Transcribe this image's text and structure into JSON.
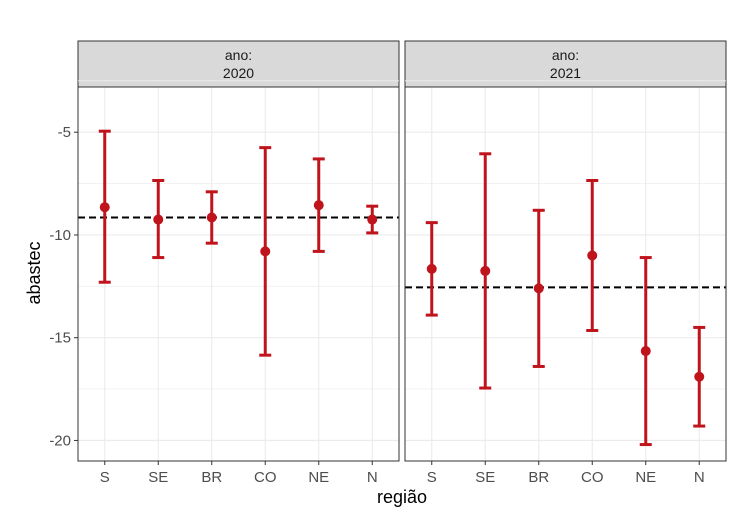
{
  "chart_data": {
    "type": "errorbar",
    "xlabel": "região",
    "ylabel": "abastec",
    "ylim": [
      -21,
      -2.8
    ],
    "yticks": [
      -5,
      -10,
      -15,
      -20
    ],
    "categories": [
      "S",
      "SE",
      "BR",
      "CO",
      "NE",
      "N"
    ],
    "colors": {
      "points": "#c0141c",
      "reference_line": "#000000"
    },
    "grid": true,
    "legend": "none",
    "facets": [
      {
        "strip_line1": "ano:",
        "strip_line2": "2020",
        "reference_line": -9.15,
        "points": [
          {
            "category": "S",
            "value": -8.65,
            "lower": -12.3,
            "upper": -4.95
          },
          {
            "category": "SE",
            "value": -9.25,
            "lower": -11.1,
            "upper": -7.35
          },
          {
            "category": "BR",
            "value": -9.15,
            "lower": -10.4,
            "upper": -7.9
          },
          {
            "category": "CO",
            "value": -10.8,
            "lower": -15.85,
            "upper": -5.75
          },
          {
            "category": "NE",
            "value": -8.55,
            "lower": -10.8,
            "upper": -6.3
          },
          {
            "category": "N",
            "value": -9.25,
            "lower": -9.9,
            "upper": -8.6
          }
        ]
      },
      {
        "strip_line1": "ano:",
        "strip_line2": "2021",
        "reference_line": -12.55,
        "points": [
          {
            "category": "S",
            "value": -11.65,
            "lower": -13.9,
            "upper": -9.4
          },
          {
            "category": "SE",
            "value": -11.75,
            "lower": -17.45,
            "upper": -6.05
          },
          {
            "category": "BR",
            "value": -12.6,
            "lower": -16.4,
            "upper": -8.8
          },
          {
            "category": "CO",
            "value": -11.0,
            "lower": -14.65,
            "upper": -7.35
          },
          {
            "category": "NE",
            "value": -15.65,
            "lower": -20.2,
            "upper": -11.1
          },
          {
            "category": "N",
            "value": -16.9,
            "lower": -19.3,
            "upper": -14.5
          }
        ]
      }
    ]
  }
}
